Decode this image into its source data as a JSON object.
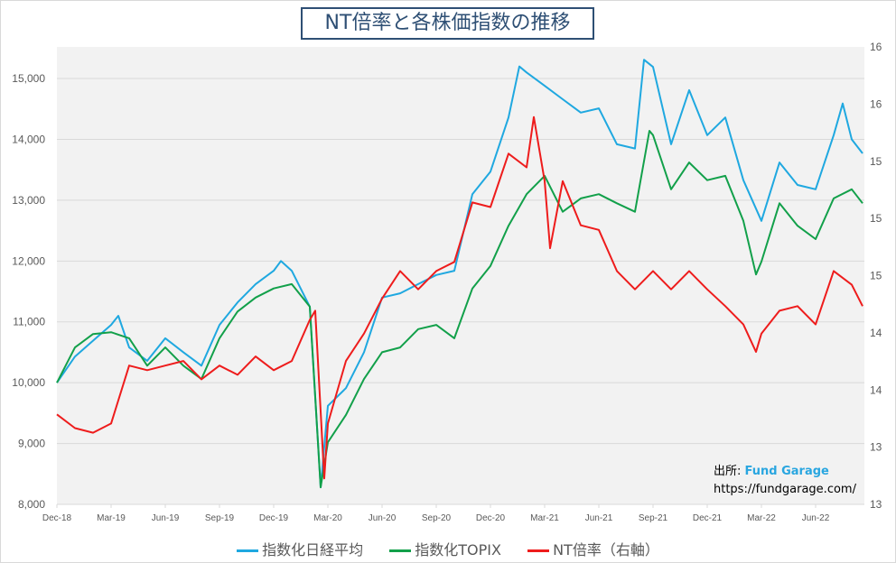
{
  "chart_data": {
    "type": "line",
    "title": "NT倍率と各株価指数の推移",
    "x_unit": "months since Dec-18",
    "x_tick_labels": [
      "Dec-18",
      "Mar-19",
      "Jun-19",
      "Sep-19",
      "Dec-19",
      "Mar-20",
      "Jun-20",
      "Sep-20",
      "Dec-20",
      "Mar-21",
      "Jun-21",
      "Sep-21",
      "Dec-21",
      "Mar-22",
      "Jun-22"
    ],
    "x_tick_positions": [
      0,
      3,
      6,
      9,
      12,
      15,
      18,
      21,
      24,
      27,
      30,
      33,
      36,
      39,
      42
    ],
    "xlim": [
      0,
      44.7
    ],
    "y_left": {
      "ylim": [
        8000,
        15520
      ],
      "ticks": [
        "8,000",
        "9,000",
        "10,000",
        "11,000",
        "12,000",
        "13,000",
        "14,000",
        "15,000"
      ],
      "tick_values": [
        8000,
        9000,
        10000,
        11000,
        12000,
        13000,
        14000,
        15000
      ]
    },
    "y_right": {
      "ylim": [
        13,
        16
      ],
      "ticks": [
        "13",
        "13",
        "14",
        "14",
        "15",
        "15",
        "15",
        "16",
        "16"
      ],
      "tick_values": [
        13,
        13.375,
        13.75,
        14.125,
        14.5,
        14.875,
        15.25,
        15.625,
        16
      ]
    },
    "grid": true,
    "legend_position": "bottom",
    "series": [
      {
        "name": "指数化日経平均",
        "axis": "left",
        "color": "#1fa8e0",
        "x": [
          0,
          1,
          2,
          3,
          3.4,
          4,
          5,
          6,
          7,
          8,
          9,
          10,
          11,
          12,
          12.4,
          13,
          14,
          14.6,
          15,
          16,
          17,
          18,
          19,
          20,
          21,
          22,
          23,
          24,
          25,
          25.6,
          26,
          27,
          28,
          29,
          30,
          31,
          32,
          32.5,
          33,
          34,
          35,
          36,
          37,
          38,
          39,
          40,
          41,
          42,
          43,
          43.5,
          44,
          44.6
        ],
        "y": [
          10000,
          10430,
          10690,
          10950,
          11100,
          10580,
          10360,
          10730,
          10500,
          10280,
          10950,
          11320,
          11620,
          11840,
          12000,
          11840,
          11250,
          8280,
          9620,
          9910,
          10500,
          11400,
          11470,
          11620,
          11770,
          11840,
          13100,
          13470,
          14360,
          15200,
          15100,
          14880,
          14660,
          14440,
          14510,
          13920,
          13850,
          15310,
          15190,
          13920,
          14810,
          14070,
          14360,
          13330,
          12660,
          13620,
          13250,
          13180,
          14070,
          14590,
          14000,
          13770
        ]
      },
      {
        "name": "指数化TOPIX",
        "axis": "left",
        "color": "#12a04a",
        "x": [
          0,
          1,
          2,
          3,
          4,
          5,
          6,
          7,
          8,
          9,
          10,
          11,
          12,
          13,
          14,
          14.6,
          15,
          16,
          17,
          18,
          19,
          20,
          21,
          22,
          23,
          24,
          25,
          26,
          27,
          28,
          29,
          30,
          31,
          32,
          32.8,
          33,
          34,
          35,
          36,
          37,
          38,
          38.7,
          39,
          40,
          41,
          42,
          43,
          44,
          44.6
        ],
        "y": [
          10000,
          10580,
          10800,
          10830,
          10730,
          10280,
          10580,
          10280,
          10060,
          10730,
          11170,
          11400,
          11550,
          11620,
          11250,
          8280,
          9020,
          9470,
          10060,
          10500,
          10580,
          10880,
          10950,
          10730,
          11550,
          11920,
          12580,
          13100,
          13400,
          12810,
          13030,
          13100,
          12950,
          12810,
          14140,
          14070,
          13180,
          13620,
          13330,
          13400,
          12660,
          11780,
          11990,
          12950,
          12580,
          12360,
          13030,
          13180,
          12950
        ]
      },
      {
        "name": "NT倍率（右軸）",
        "axis": "right",
        "color": "#ee1c1c",
        "x": [
          0,
          1,
          2,
          3,
          4,
          5,
          6,
          7,
          8,
          9,
          10,
          11,
          12,
          13,
          14,
          14.3,
          14.8,
          15,
          16,
          17,
          18,
          19,
          20,
          21,
          22,
          23,
          24,
          25,
          26,
          26.4,
          27,
          27.3,
          28,
          29,
          30,
          31,
          32,
          33,
          34,
          35,
          36,
          37,
          38,
          38.7,
          39,
          40,
          41,
          42,
          43,
          44,
          44.6
        ],
        "y": [
          13.59,
          13.5,
          13.47,
          13.53,
          13.91,
          13.88,
          13.91,
          13.94,
          13.82,
          13.91,
          13.85,
          13.97,
          13.88,
          13.94,
          14.21,
          14.27,
          13.17,
          13.53,
          13.94,
          14.12,
          14.35,
          14.53,
          14.41,
          14.53,
          14.59,
          14.98,
          14.95,
          15.3,
          15.21,
          15.54,
          15.12,
          14.68,
          15.12,
          14.83,
          14.8,
          14.53,
          14.41,
          14.53,
          14.41,
          14.53,
          14.41,
          14.3,
          14.18,
          14.0,
          14.12,
          14.27,
          14.3,
          14.18,
          14.53,
          14.44,
          14.3
        ]
      }
    ]
  },
  "source": {
    "label": "出所:",
    "brand": "Fund Garage",
    "url": "https://fundgarage.com/"
  }
}
